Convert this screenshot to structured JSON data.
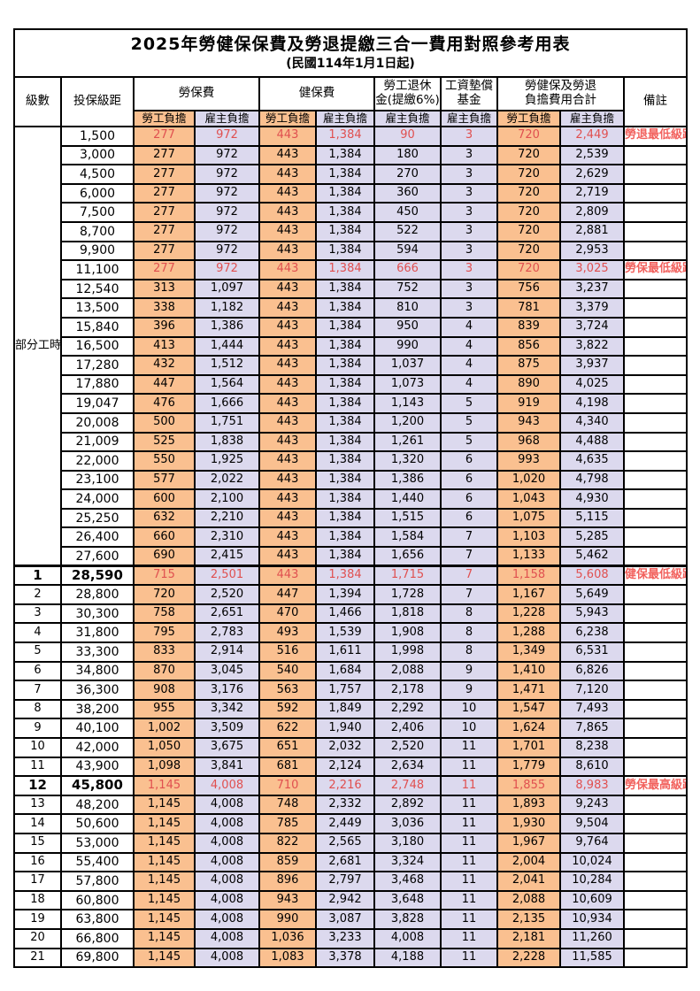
{
  "title": "2025年勞健保保費及勞退提繳三合一費用對照參考用表",
  "subtitle": "(民國114年1月1日起)",
  "colors": {
    "employee_bg": "#FAC090",
    "employer_bg": "#DCD9EE",
    "highlight_text": "#E05050",
    "remark_text": "#F2625E"
  },
  "table": {
    "header": {
      "level": "級數",
      "salary": "投保級距",
      "labor": "勞保費",
      "health": "健保費",
      "pension": "勞工退休\n金(提繳6%)",
      "wage_fund": "工資墊償\n基金",
      "total": "勞健保及勞退\n負擔費用合計",
      "remark": "備註",
      "employee": "勞工負擔",
      "employer": "雇主負擔"
    },
    "part_time_label": "部分工時",
    "rows": [
      {
        "level": "",
        "salary": "1,500",
        "values": [
          "277",
          "972",
          "443",
          "1,384",
          "90",
          "3",
          "720",
          "2,449"
        ],
        "remark": "勞退最低級距",
        "red": true
      },
      {
        "level": "",
        "salary": "3,000",
        "values": [
          "277",
          "972",
          "443",
          "1,384",
          "180",
          "3",
          "720",
          "2,539"
        ]
      },
      {
        "level": "",
        "salary": "4,500",
        "values": [
          "277",
          "972",
          "443",
          "1,384",
          "270",
          "3",
          "720",
          "2,629"
        ]
      },
      {
        "level": "",
        "salary": "6,000",
        "values": [
          "277",
          "972",
          "443",
          "1,384",
          "360",
          "3",
          "720",
          "2,719"
        ]
      },
      {
        "level": "",
        "salary": "7,500",
        "values": [
          "277",
          "972",
          "443",
          "1,384",
          "450",
          "3",
          "720",
          "2,809"
        ]
      },
      {
        "level": "",
        "salary": "8,700",
        "values": [
          "277",
          "972",
          "443",
          "1,384",
          "522",
          "3",
          "720",
          "2,881"
        ]
      },
      {
        "level": "",
        "salary": "9,900",
        "values": [
          "277",
          "972",
          "443",
          "1,384",
          "594",
          "3",
          "720",
          "2,953"
        ]
      },
      {
        "level": "",
        "salary": "11,100",
        "values": [
          "277",
          "972",
          "443",
          "1,384",
          "666",
          "3",
          "720",
          "3,025"
        ],
        "remark": "勞保最低級距",
        "red": true
      },
      {
        "level": "",
        "salary": "12,540",
        "values": [
          "313",
          "1,097",
          "443",
          "1,384",
          "752",
          "3",
          "756",
          "3,237"
        ]
      },
      {
        "level": "",
        "salary": "13,500",
        "values": [
          "338",
          "1,182",
          "443",
          "1,384",
          "810",
          "3",
          "781",
          "3,379"
        ]
      },
      {
        "level": "",
        "salary": "15,840",
        "values": [
          "396",
          "1,386",
          "443",
          "1,384",
          "950",
          "4",
          "839",
          "3,724"
        ]
      },
      {
        "level": "",
        "salary": "16,500",
        "values": [
          "413",
          "1,444",
          "443",
          "1,384",
          "990",
          "4",
          "856",
          "3,822"
        ]
      },
      {
        "level": "",
        "salary": "17,280",
        "values": [
          "432",
          "1,512",
          "443",
          "1,384",
          "1,037",
          "4",
          "875",
          "3,937"
        ]
      },
      {
        "level": "",
        "salary": "17,880",
        "values": [
          "447",
          "1,564",
          "443",
          "1,384",
          "1,073",
          "4",
          "890",
          "4,025"
        ]
      },
      {
        "level": "",
        "salary": "19,047",
        "values": [
          "476",
          "1,666",
          "443",
          "1,384",
          "1,143",
          "5",
          "919",
          "4,198"
        ]
      },
      {
        "level": "",
        "salary": "20,008",
        "values": [
          "500",
          "1,751",
          "443",
          "1,384",
          "1,200",
          "5",
          "943",
          "4,340"
        ]
      },
      {
        "level": "",
        "salary": "21,009",
        "values": [
          "525",
          "1,838",
          "443",
          "1,384",
          "1,261",
          "5",
          "968",
          "4,488"
        ]
      },
      {
        "level": "",
        "salary": "22,000",
        "values": [
          "550",
          "1,925",
          "443",
          "1,384",
          "1,320",
          "6",
          "993",
          "4,635"
        ]
      },
      {
        "level": "",
        "salary": "23,100",
        "values": [
          "577",
          "2,022",
          "443",
          "1,384",
          "1,386",
          "6",
          "1,020",
          "4,798"
        ]
      },
      {
        "level": "",
        "salary": "24,000",
        "values": [
          "600",
          "2,100",
          "443",
          "1,384",
          "1,440",
          "6",
          "1,043",
          "4,930"
        ]
      },
      {
        "level": "",
        "salary": "25,250",
        "values": [
          "632",
          "2,210",
          "443",
          "1,384",
          "1,515",
          "6",
          "1,075",
          "5,115"
        ]
      },
      {
        "level": "",
        "salary": "26,400",
        "values": [
          "660",
          "2,310",
          "443",
          "1,384",
          "1,584",
          "7",
          "1,103",
          "5,285"
        ]
      },
      {
        "level": "",
        "salary": "27,600",
        "values": [
          "690",
          "2,415",
          "443",
          "1,384",
          "1,656",
          "7",
          "1,133",
          "5,462"
        ]
      },
      {
        "level": "1",
        "salary": "28,590",
        "values": [
          "715",
          "2,501",
          "443",
          "1,384",
          "1,715",
          "7",
          "1,158",
          "5,608"
        ],
        "remark": "健保最低級距",
        "red": true,
        "bold": true
      },
      {
        "level": "2",
        "salary": "28,800",
        "values": [
          "720",
          "2,520",
          "447",
          "1,394",
          "1,728",
          "7",
          "1,167",
          "5,649"
        ]
      },
      {
        "level": "3",
        "salary": "30,300",
        "values": [
          "758",
          "2,651",
          "470",
          "1,466",
          "1,818",
          "8",
          "1,228",
          "5,943"
        ]
      },
      {
        "level": "4",
        "salary": "31,800",
        "values": [
          "795",
          "2,783",
          "493",
          "1,539",
          "1,908",
          "8",
          "1,288",
          "6,238"
        ]
      },
      {
        "level": "5",
        "salary": "33,300",
        "values": [
          "833",
          "2,914",
          "516",
          "1,611",
          "1,998",
          "8",
          "1,349",
          "6,531"
        ]
      },
      {
        "level": "6",
        "salary": "34,800",
        "values": [
          "870",
          "3,045",
          "540",
          "1,684",
          "2,088",
          "9",
          "1,410",
          "6,826"
        ]
      },
      {
        "level": "7",
        "salary": "36,300",
        "values": [
          "908",
          "3,176",
          "563",
          "1,757",
          "2,178",
          "9",
          "1,471",
          "7,120"
        ]
      },
      {
        "level": "8",
        "salary": "38,200",
        "values": [
          "955",
          "3,342",
          "592",
          "1,849",
          "2,292",
          "10",
          "1,547",
          "7,493"
        ]
      },
      {
        "level": "9",
        "salary": "40,100",
        "values": [
          "1,002",
          "3,509",
          "622",
          "1,940",
          "2,406",
          "10",
          "1,624",
          "7,865"
        ]
      },
      {
        "level": "10",
        "salary": "42,000",
        "values": [
          "1,050",
          "3,675",
          "651",
          "2,032",
          "2,520",
          "11",
          "1,701",
          "8,238"
        ]
      },
      {
        "level": "11",
        "salary": "43,900",
        "values": [
          "1,098",
          "3,841",
          "681",
          "2,124",
          "2,634",
          "11",
          "1,779",
          "8,610"
        ]
      },
      {
        "level": "12",
        "salary": "45,800",
        "values": [
          "1,145",
          "4,008",
          "710",
          "2,216",
          "2,748",
          "11",
          "1,855",
          "8,983"
        ],
        "remark": "勞保最高級距",
        "red": true,
        "bold": true
      },
      {
        "level": "13",
        "salary": "48,200",
        "values": [
          "1,145",
          "4,008",
          "748",
          "2,332",
          "2,892",
          "11",
          "1,893",
          "9,243"
        ]
      },
      {
        "level": "14",
        "salary": "50,600",
        "values": [
          "1,145",
          "4,008",
          "785",
          "2,449",
          "3,036",
          "11",
          "1,930",
          "9,504"
        ]
      },
      {
        "level": "15",
        "salary": "53,000",
        "values": [
          "1,145",
          "4,008",
          "822",
          "2,565",
          "3,180",
          "11",
          "1,967",
          "9,764"
        ]
      },
      {
        "level": "16",
        "salary": "55,400",
        "values": [
          "1,145",
          "4,008",
          "859",
          "2,681",
          "3,324",
          "11",
          "2,004",
          "10,024"
        ]
      },
      {
        "level": "17",
        "salary": "57,800",
        "values": [
          "1,145",
          "4,008",
          "896",
          "2,797",
          "3,468",
          "11",
          "2,041",
          "10,284"
        ]
      },
      {
        "level": "18",
        "salary": "60,800",
        "values": [
          "1,145",
          "4,008",
          "943",
          "2,942",
          "3,648",
          "11",
          "2,088",
          "10,609"
        ]
      },
      {
        "level": "19",
        "salary": "63,800",
        "values": [
          "1,145",
          "4,008",
          "990",
          "3,087",
          "3,828",
          "11",
          "2,135",
          "10,934"
        ]
      },
      {
        "level": "20",
        "salary": "66,800",
        "values": [
          "1,145",
          "4,008",
          "1,036",
          "3,233",
          "4,008",
          "11",
          "2,181",
          "11,260"
        ]
      },
      {
        "level": "21",
        "salary": "69,800",
        "values": [
          "1,145",
          "4,008",
          "1,083",
          "3,378",
          "4,188",
          "11",
          "2,228",
          "11,585"
        ]
      }
    ]
  }
}
